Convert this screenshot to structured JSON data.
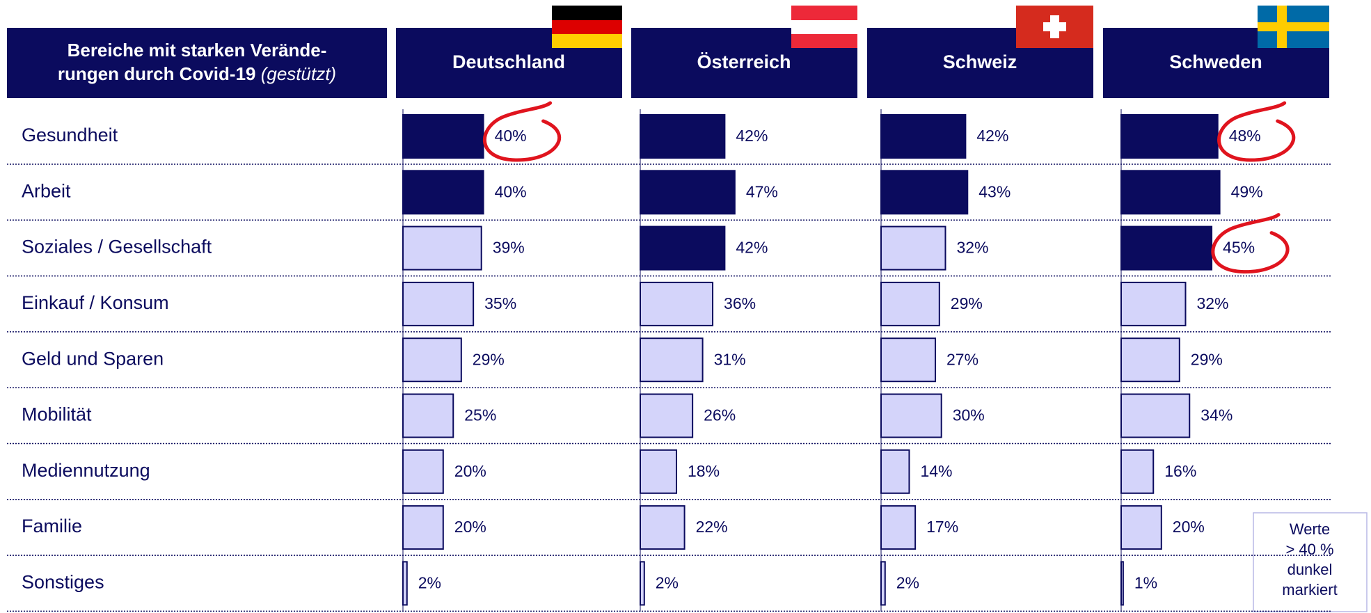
{
  "chart_data": {
    "type": "bar",
    "title_lines": [
      "Bereiche mit starken Verände-",
      "rungen durch Covid-19"
    ],
    "title_note": "(gestützt)",
    "categories": [
      "Gesundheit",
      "Arbeit",
      "Soziales / Gesellschaft",
      "Einkauf / Konsum",
      "Geld und Sparen",
      "Mobilität",
      "Mediennutzung",
      "Familie",
      "Sonstiges"
    ],
    "series": [
      {
        "name": "Deutschland",
        "values": [
          40,
          40,
          39,
          35,
          29,
          25,
          20,
          20,
          2
        ],
        "value_labels": [
          "40%",
          "40%",
          "39%",
          "35%",
          "29%",
          "25%",
          "20%",
          "20%",
          "2%"
        ],
        "circled": [
          0
        ]
      },
      {
        "name": "Österreich",
        "values": [
          42,
          47,
          42,
          36,
          31,
          26,
          18,
          22,
          2
        ],
        "value_labels": [
          "42%",
          "47%",
          "42%",
          "36%",
          "31%",
          "26%",
          "18%",
          "22%",
          "2%"
        ],
        "circled": []
      },
      {
        "name": "Schweiz",
        "values": [
          42,
          43,
          32,
          29,
          27,
          30,
          14,
          17,
          2
        ],
        "value_labels": [
          "42%",
          "43%",
          "32%",
          "29%",
          "27%",
          "30%",
          "14%",
          "17%",
          "2%"
        ],
        "circled": []
      },
      {
        "name": "Schweden",
        "values": [
          48,
          49,
          45,
          32,
          29,
          34,
          16,
          20,
          1
        ],
        "value_labels": [
          "48%",
          "49%",
          "45%",
          "32%",
          "29%",
          "34%",
          "16%",
          "20%",
          "1%"
        ],
        "circled": [
          0,
          2
        ]
      }
    ],
    "highlight_threshold": 40,
    "dark_color": "#0b0b5e",
    "light_color": "#d4d4fa",
    "note_lines": [
      "Werte",
      "> 40 %",
      "dunkel",
      "markiert"
    ]
  }
}
